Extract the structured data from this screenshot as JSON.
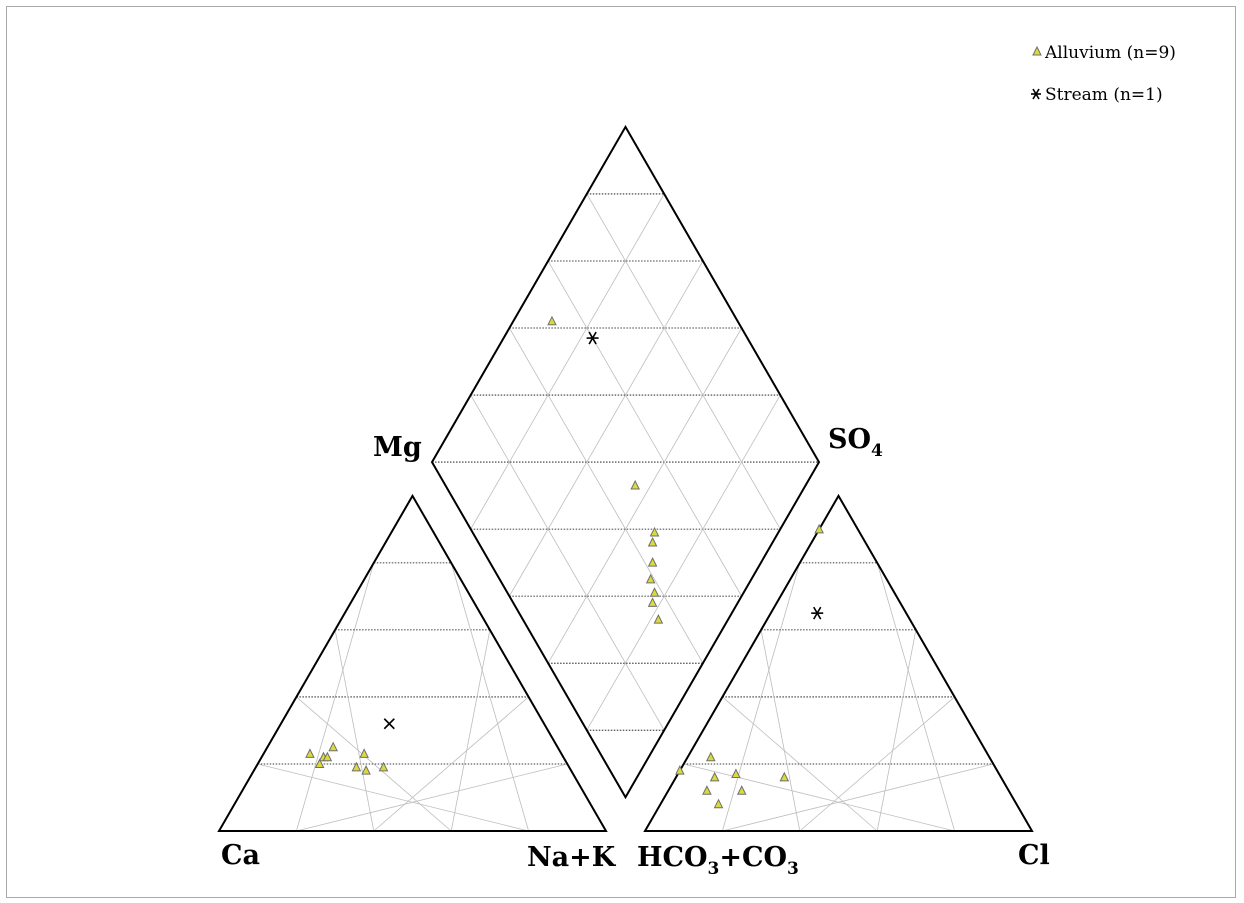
{
  "chart_data": {
    "type": "scatter",
    "subtype": "piper-diagram",
    "title": "",
    "labels": {
      "ca": "Ca",
      "nak": "Na+K",
      "mg": "Mg",
      "hco3_main": "HCO",
      "hco3_sub1": "3",
      "hco3_plus": "+CO",
      "hco3_sub2": "3",
      "cl": "Cl",
      "so4_main": "SO",
      "so4_sub": "4"
    },
    "legend": {
      "placement": "top-right",
      "items": [
        {
          "marker": "triangle",
          "label": "Alluvium (n=9)"
        },
        {
          "marker": "asterisk",
          "label": "Stream (n=1)"
        }
      ]
    },
    "gridlines": "every 20%",
    "series": [
      {
        "name": "Alluvium (n=9)",
        "color": "#dada3a",
        "marker": "triangle",
        "cation_pct": [
          {
            "ca": 65,
            "mg": 23,
            "nak": 12
          },
          {
            "ca": 64,
            "mg": 20,
            "nak": 16
          },
          {
            "ca": 62,
            "mg": 22,
            "nak": 16
          },
          {
            "ca": 61,
            "mg": 22,
            "nak": 17
          },
          {
            "ca": 58,
            "mg": 25,
            "nak": 17
          },
          {
            "ca": 55,
            "mg": 19,
            "nak": 26
          },
          {
            "ca": 53,
            "mg": 18,
            "nak": 29
          },
          {
            "ca": 51,
            "mg": 23,
            "nak": 26
          },
          {
            "ca": 48,
            "mg": 19,
            "nak": 33
          }
        ],
        "anion_pct": [
          {
            "hco3": 82,
            "so4": 18,
            "cl": 0
          },
          {
            "hco3": 78,
            "so4": 12,
            "cl": 10
          },
          {
            "hco3": 77,
            "so4": 8,
            "cl": 15
          },
          {
            "hco3": 74,
            "so4": 16,
            "cl": 10
          },
          {
            "hco3": 72,
            "so4": 22,
            "cl": 6
          },
          {
            "hco3": 69,
            "so4": 12,
            "cl": 19
          },
          {
            "hco3": 68,
            "so4": 17,
            "cl": 15
          },
          {
            "hco3": 56,
            "so4": 16,
            "cl": 28
          },
          {
            "hco3": 10,
            "so4": 90,
            "cl": 0
          }
        ]
      },
      {
        "name": "Stream (n=1)",
        "color": "#000000",
        "marker": "asterisk",
        "cation_pct": [
          {
            "ca": 40,
            "mg": 32,
            "nak": 28
          }
        ],
        "anion_pct": [
          {
            "hco3": 23,
            "so4": 65,
            "cl": 12
          }
        ]
      }
    ]
  }
}
